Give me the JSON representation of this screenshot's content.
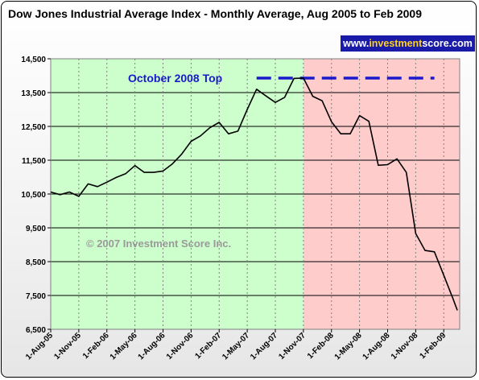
{
  "chart_data": {
    "type": "line",
    "title": "Dow Jones Industrial Average Index - Monthly Average, Aug 2005 to Feb 2009",
    "xlabel": "",
    "ylabel": "",
    "ylim": [
      6500,
      14500
    ],
    "y_ticks": [
      "6,500",
      "7,500",
      "8,500",
      "9,500",
      "10,500",
      "11,500",
      "12,500",
      "13,500",
      "14,500"
    ],
    "x_tick_labels": [
      "1-Aug-05",
      "1-Nov-05",
      "1-Feb-06",
      "1-May-06",
      "1-Aug-06",
      "1-Nov-06",
      "1-Feb-07",
      "1-May-07",
      "1-Aug-07",
      "1-Nov-07",
      "1-Feb-08",
      "1-May-08",
      "1-Aug-08",
      "1-Nov-08",
      "1-Feb-09"
    ],
    "grid": true,
    "legend": "none",
    "series": [
      {
        "color": "#000000",
        "points": [
          [
            "2005-08-01",
            10560
          ],
          [
            "2005-09-01",
            10480
          ],
          [
            "2005-10-01",
            10560
          ],
          [
            "2005-11-01",
            10430
          ],
          [
            "2005-12-01",
            10800
          ],
          [
            "2006-01-01",
            10720
          ],
          [
            "2006-02-01",
            10850
          ],
          [
            "2006-03-01",
            10990
          ],
          [
            "2006-04-01",
            11100
          ],
          [
            "2006-05-01",
            11340
          ],
          [
            "2006-06-01",
            11140
          ],
          [
            "2006-07-01",
            11140
          ],
          [
            "2006-08-01",
            11180
          ],
          [
            "2006-09-01",
            11390
          ],
          [
            "2006-10-01",
            11680
          ],
          [
            "2006-11-01",
            12060
          ],
          [
            "2006-12-01",
            12220
          ],
          [
            "2007-01-01",
            12460
          ],
          [
            "2007-02-01",
            12620
          ],
          [
            "2007-03-01",
            12280
          ],
          [
            "2007-04-01",
            12360
          ],
          [
            "2007-05-01",
            13000
          ],
          [
            "2007-06-01",
            13600
          ],
          [
            "2007-07-01",
            13400
          ],
          [
            "2007-08-01",
            13210
          ],
          [
            "2007-09-01",
            13360
          ],
          [
            "2007-10-01",
            13920
          ],
          [
            "2007-11-01",
            13930
          ],
          [
            "2007-12-01",
            13390
          ],
          [
            "2008-01-01",
            13260
          ],
          [
            "2008-02-01",
            12640
          ],
          [
            "2008-03-01",
            12280
          ],
          [
            "2008-04-01",
            12280
          ],
          [
            "2008-05-01",
            12820
          ],
          [
            "2008-06-01",
            12650
          ],
          [
            "2008-07-01",
            11350
          ],
          [
            "2008-08-01",
            11370
          ],
          [
            "2008-09-01",
            11540
          ],
          [
            "2008-10-01",
            11140
          ],
          [
            "2008-11-01",
            9330
          ],
          [
            "2008-12-01",
            8830
          ],
          [
            "2009-01-01",
            8790
          ],
          [
            "2009-02-01",
            8100
          ],
          [
            "2009-03-01",
            7390
          ],
          [
            "2009-03-15",
            7060
          ]
        ]
      }
    ],
    "bands": [
      {
        "start": "2005-08-01",
        "end": "2007-11-01",
        "color": "#ccffcc"
      },
      {
        "start": "2007-11-01",
        "end": "2009-03-31",
        "color": "#ffcccc"
      }
    ],
    "annotations": [
      {
        "text": "October 2008 Top",
        "y": 13930,
        "color": "#1a1acc",
        "line_start": "2007-06-01",
        "line_end": "2009-01-01"
      }
    ],
    "watermark": "© 2007 Investment Score Inc."
  },
  "badge": {
    "prefix": "www.",
    "brand": "investment",
    "suffix": "score.com"
  }
}
